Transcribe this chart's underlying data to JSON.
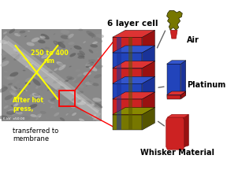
{
  "bg_color": "#ffffff",
  "annotation_text_1": "250 to 400\nnm",
  "annotation_text_2": "After hot\npress,",
  "annotation_text_3": "transferred to\nmembrane",
  "label_6layer": "6 layer cell",
  "label_air": "Air",
  "label_platinum": "Platinum",
  "label_whisker": "Whisker Material",
  "color_red": "#cc2222",
  "color_red_dark": "#991111",
  "color_red_light": "#dd3333",
  "color_blue": "#2244bb",
  "color_blue_dark": "#1a3399",
  "color_blue_light": "#3355cc",
  "color_olive": "#777700",
  "color_olive_dark": "#555500",
  "color_olive_light": "#888800",
  "color_arrow": "#666666",
  "color_yellow": "#ffff00",
  "color_white": "#ffffff",
  "color_red_box": "#ff0000"
}
